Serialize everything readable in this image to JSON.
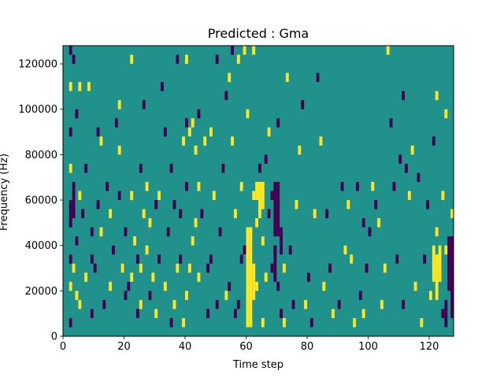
{
  "chart_data": {
    "type": "heatmap",
    "title": "Predicted : Gma",
    "xlabel": "Time step",
    "ylabel": "Frequency (Hz)",
    "xlim": [
      0,
      128
    ],
    "ylim": [
      0,
      128000
    ],
    "x_ticks": [
      0,
      20,
      40,
      60,
      80,
      100,
      120
    ],
    "y_ticks": [
      0,
      20000,
      40000,
      60000,
      80000,
      100000,
      120000
    ],
    "x_tick_labels": [
      "0",
      "20",
      "40",
      "60",
      "80",
      "100",
      "120"
    ],
    "y_tick_labels": [
      "0",
      "20000",
      "40000",
      "60000",
      "80000",
      "100000",
      "120000"
    ],
    "grid": false,
    "legend": "none",
    "colormap": "viridis",
    "levels": {
      "low": {
        "value": -1,
        "color": "#440154"
      },
      "mid": {
        "value": 0,
        "color": "#21918c"
      },
      "high": {
        "value": 1,
        "color": "#fde725"
      }
    },
    "cell_height_hz": 4000,
    "cells": [
      {
        "x": 2,
        "y": 4000,
        "v": -1
      },
      {
        "x": 2,
        "y": 32000,
        "v": -1
      },
      {
        "x": 2,
        "y": 48000,
        "v": -1
      },
      {
        "x": 2,
        "y": 56000,
        "v": -1
      },
      {
        "x": 2,
        "y": 88000,
        "v": -1
      },
      {
        "x": 2,
        "y": 124000,
        "v": -1
      },
      {
        "x": 2,
        "y": 20000,
        "v": 1
      },
      {
        "x": 2,
        "y": 72000,
        "v": 1
      },
      {
        "x": 2,
        "y": 108000,
        "v": 1
      },
      {
        "x": 3,
        "y": 64000,
        "v": -1
      },
      {
        "x": 3,
        "y": 120000,
        "v": -1
      },
      {
        "x": 3,
        "y": 28000,
        "v": 1
      },
      {
        "x": 4,
        "y": 40000,
        "v": -1
      },
      {
        "x": 4,
        "y": 96000,
        "v": -1
      },
      {
        "x": 4,
        "y": 16000,
        "v": 1
      },
      {
        "x": 5,
        "y": 12000,
        "v": 1
      },
      {
        "x": 5,
        "y": 60000,
        "v": 1
      },
      {
        "x": 5,
        "y": 108000,
        "v": 1
      },
      {
        "x": 6,
        "y": 52000,
        "v": -1
      },
      {
        "x": 7,
        "y": 72000,
        "v": -1
      },
      {
        "x": 7,
        "y": 24000,
        "v": 1
      },
      {
        "x": 8,
        "y": 108000,
        "v": 1
      },
      {
        "x": 9,
        "y": 44000,
        "v": -1
      },
      {
        "x": 9,
        "y": 8000,
        "v": -1
      },
      {
        "x": 9,
        "y": 32000,
        "v": -1
      },
      {
        "x": 10,
        "y": 28000,
        "v": -1
      },
      {
        "x": 11,
        "y": 56000,
        "v": -1
      },
      {
        "x": 11,
        "y": 88000,
        "v": -1
      },
      {
        "x": 12,
        "y": 84000,
        "v": 1
      },
      {
        "x": 12,
        "y": 44000,
        "v": 1
      },
      {
        "x": 13,
        "y": 12000,
        "v": -1
      },
      {
        "x": 14,
        "y": 64000,
        "v": -1
      },
      {
        "x": 15,
        "y": 52000,
        "v": 1
      },
      {
        "x": 15,
        "y": 20000,
        "v": 1
      },
      {
        "x": 16,
        "y": 36000,
        "v": -1
      },
      {
        "x": 17,
        "y": 92000,
        "v": -1
      },
      {
        "x": 18,
        "y": 60000,
        "v": -1
      },
      {
        "x": 18,
        "y": 80000,
        "v": 1
      },
      {
        "x": 18,
        "y": 100000,
        "v": 1
      },
      {
        "x": 19,
        "y": 28000,
        "v": 1
      },
      {
        "x": 20,
        "y": 16000,
        "v": -1
      },
      {
        "x": 20,
        "y": 44000,
        "v": -1
      },
      {
        "x": 21,
        "y": 20000,
        "v": -1
      },
      {
        "x": 22,
        "y": 24000,
        "v": 1
      },
      {
        "x": 22,
        "y": 60000,
        "v": 1
      },
      {
        "x": 22,
        "y": 120000,
        "v": 1
      },
      {
        "x": 23,
        "y": 40000,
        "v": 1
      },
      {
        "x": 24,
        "y": 32000,
        "v": -1
      },
      {
        "x": 24,
        "y": 8000,
        "v": -1
      },
      {
        "x": 25,
        "y": 72000,
        "v": -1
      },
      {
        "x": 25,
        "y": 12000,
        "v": 1
      },
      {
        "x": 25,
        "y": 28000,
        "v": 1
      },
      {
        "x": 26,
        "y": 52000,
        "v": 1
      },
      {
        "x": 26,
        "y": 100000,
        "v": -1
      },
      {
        "x": 27,
        "y": 64000,
        "v": 1
      },
      {
        "x": 27,
        "y": 36000,
        "v": 1
      },
      {
        "x": 28,
        "y": 48000,
        "v": 1
      },
      {
        "x": 28,
        "y": 16000,
        "v": -1
      },
      {
        "x": 29,
        "y": 24000,
        "v": 1
      },
      {
        "x": 30,
        "y": 8000,
        "v": 1
      },
      {
        "x": 30,
        "y": 56000,
        "v": -1
      },
      {
        "x": 31,
        "y": 32000,
        "v": -1
      },
      {
        "x": 31,
        "y": 60000,
        "v": 1
      },
      {
        "x": 32,
        "y": 108000,
        "v": -1
      },
      {
        "x": 33,
        "y": 20000,
        "v": 1
      },
      {
        "x": 33,
        "y": 88000,
        "v": -1
      },
      {
        "x": 34,
        "y": 44000,
        "v": -1
      },
      {
        "x": 35,
        "y": 4000,
        "v": -1
      },
      {
        "x": 35,
        "y": 72000,
        "v": -1
      },
      {
        "x": 36,
        "y": 12000,
        "v": 1
      },
      {
        "x": 36,
        "y": 56000,
        "v": -1
      },
      {
        "x": 37,
        "y": 28000,
        "v": 1
      },
      {
        "x": 37,
        "y": 120000,
        "v": -1
      },
      {
        "x": 38,
        "y": 52000,
        "v": -1
      },
      {
        "x": 38,
        "y": 32000,
        "v": -1
      },
      {
        "x": 39,
        "y": 84000,
        "v": 1
      },
      {
        "x": 39,
        "y": 4000,
        "v": 1
      },
      {
        "x": 40,
        "y": 64000,
        "v": -1
      },
      {
        "x": 40,
        "y": 92000,
        "v": -1
      },
      {
        "x": 40,
        "y": 16000,
        "v": 1
      },
      {
        "x": 40,
        "y": 120000,
        "v": 1
      },
      {
        "x": 41,
        "y": 88000,
        "v": 1
      },
      {
        "x": 41,
        "y": 28000,
        "v": 1
      },
      {
        "x": 42,
        "y": 92000,
        "v": 1
      },
      {
        "x": 42,
        "y": 40000,
        "v": 1
      },
      {
        "x": 43,
        "y": 80000,
        "v": 1
      },
      {
        "x": 43,
        "y": 48000,
        "v": 1
      },
      {
        "x": 44,
        "y": 24000,
        "v": 1
      },
      {
        "x": 44,
        "y": 64000,
        "v": 1
      },
      {
        "x": 44,
        "y": 96000,
        "v": -1
      },
      {
        "x": 45,
        "y": 52000,
        "v": -1
      },
      {
        "x": 46,
        "y": 84000,
        "v": 1
      },
      {
        "x": 47,
        "y": 28000,
        "v": -1
      },
      {
        "x": 47,
        "y": 8000,
        "v": -1
      },
      {
        "x": 48,
        "y": 88000,
        "v": 1
      },
      {
        "x": 48,
        "y": 32000,
        "v": -1
      },
      {
        "x": 49,
        "y": 60000,
        "v": 1
      },
      {
        "x": 50,
        "y": 12000,
        "v": -1
      },
      {
        "x": 50,
        "y": 120000,
        "v": -1
      },
      {
        "x": 51,
        "y": 44000,
        "v": -1
      },
      {
        "x": 52,
        "y": 72000,
        "v": -1
      },
      {
        "x": 53,
        "y": 16000,
        "v": 1
      },
      {
        "x": 53,
        "y": 104000,
        "v": -1
      },
      {
        "x": 54,
        "y": 20000,
        "v": -1
      },
      {
        "x": 54,
        "y": 112000,
        "v": 1
      },
      {
        "x": 55,
        "y": 84000,
        "v": 1
      },
      {
        "x": 55,
        "y": 124000,
        "v": -1
      },
      {
        "x": 56,
        "y": 52000,
        "v": 1
      },
      {
        "x": 56,
        "y": 8000,
        "v": -1
      },
      {
        "x": 57,
        "y": 12000,
        "v": -1
      },
      {
        "x": 57,
        "y": 120000,
        "v": 1
      },
      {
        "x": 58,
        "y": 32000,
        "v": -1
      },
      {
        "x": 58,
        "y": 64000,
        "v": 1
      },
      {
        "x": 59,
        "y": 36000,
        "v": -1
      },
      {
        "x": 59,
        "y": 124000,
        "v": 1
      },
      {
        "x": 60,
        "y": 96000,
        "v": 1
      },
      {
        "x": 60,
        "y": 28000,
        "v": 1
      },
      {
        "x": 61,
        "y": 44000,
        "v": 1
      },
      {
        "x": 61,
        "y": 4000,
        "v": 1
      },
      {
        "x": 62,
        "y": 60000,
        "v": 1
      },
      {
        "x": 62,
        "y": 124000,
        "v": 1
      },
      {
        "x": 63,
        "y": 48000,
        "v": 1
      },
      {
        "x": 63,
        "y": 20000,
        "v": 1
      },
      {
        "x": 64,
        "y": 72000,
        "v": -1
      },
      {
        "x": 64,
        "y": 56000,
        "v": 1
      },
      {
        "x": 65,
        "y": 40000,
        "v": 1
      },
      {
        "x": 65,
        "y": 4000,
        "v": 1
      },
      {
        "x": 66,
        "y": 76000,
        "v": -1
      },
      {
        "x": 66,
        "y": 24000,
        "v": 1
      },
      {
        "x": 67,
        "y": 52000,
        "v": -1
      },
      {
        "x": 67,
        "y": 88000,
        "v": 1
      },
      {
        "x": 68,
        "y": 60000,
        "v": -1
      },
      {
        "x": 68,
        "y": 28000,
        "v": -1
      },
      {
        "x": 69,
        "y": 64000,
        "v": -1
      },
      {
        "x": 69,
        "y": 48000,
        "v": -1
      },
      {
        "x": 69,
        "y": 36000,
        "v": -1
      },
      {
        "x": 70,
        "y": 56000,
        "v": -1
      },
      {
        "x": 70,
        "y": 20000,
        "v": -1
      },
      {
        "x": 70,
        "y": 92000,
        "v": -1
      },
      {
        "x": 71,
        "y": 8000,
        "v": -1
      },
      {
        "x": 72,
        "y": 4000,
        "v": 1
      },
      {
        "x": 72,
        "y": 28000,
        "v": 1
      },
      {
        "x": 73,
        "y": 112000,
        "v": 1
      },
      {
        "x": 74,
        "y": 36000,
        "v": -1
      },
      {
        "x": 75,
        "y": 12000,
        "v": -1
      },
      {
        "x": 76,
        "y": 56000,
        "v": 1
      },
      {
        "x": 77,
        "y": 80000,
        "v": 1
      },
      {
        "x": 78,
        "y": 100000,
        "v": -1
      },
      {
        "x": 79,
        "y": 12000,
        "v": 1
      },
      {
        "x": 80,
        "y": 24000,
        "v": -1
      },
      {
        "x": 81,
        "y": 4000,
        "v": -1
      },
      {
        "x": 82,
        "y": 52000,
        "v": 1
      },
      {
        "x": 83,
        "y": 112000,
        "v": -1
      },
      {
        "x": 84,
        "y": 84000,
        "v": 1
      },
      {
        "x": 85,
        "y": 20000,
        "v": 1
      },
      {
        "x": 86,
        "y": 52000,
        "v": -1
      },
      {
        "x": 87,
        "y": 28000,
        "v": -1
      },
      {
        "x": 88,
        "y": 8000,
        "v": 1
      },
      {
        "x": 90,
        "y": 12000,
        "v": -1
      },
      {
        "x": 91,
        "y": 64000,
        "v": -1
      },
      {
        "x": 92,
        "y": 36000,
        "v": 1
      },
      {
        "x": 93,
        "y": 56000,
        "v": 1
      },
      {
        "x": 94,
        "y": 32000,
        "v": 1
      },
      {
        "x": 95,
        "y": 4000,
        "v": 1
      },
      {
        "x": 96,
        "y": 64000,
        "v": -1
      },
      {
        "x": 97,
        "y": 16000,
        "v": -1
      },
      {
        "x": 98,
        "y": 48000,
        "v": -1
      },
      {
        "x": 98,
        "y": 8000,
        "v": 1
      },
      {
        "x": 99,
        "y": 28000,
        "v": -1
      },
      {
        "x": 100,
        "y": 44000,
        "v": -1
      },
      {
        "x": 101,
        "y": 64000,
        "v": 1
      },
      {
        "x": 102,
        "y": 56000,
        "v": -1
      },
      {
        "x": 103,
        "y": 48000,
        "v": 1
      },
      {
        "x": 104,
        "y": 12000,
        "v": 1
      },
      {
        "x": 105,
        "y": 28000,
        "v": 1
      },
      {
        "x": 106,
        "y": 124000,
        "v": 1
      },
      {
        "x": 107,
        "y": 92000,
        "v": -1
      },
      {
        "x": 108,
        "y": 64000,
        "v": -1
      },
      {
        "x": 109,
        "y": 32000,
        "v": -1
      },
      {
        "x": 110,
        "y": 76000,
        "v": -1
      },
      {
        "x": 111,
        "y": 12000,
        "v": -1
      },
      {
        "x": 111,
        "y": 104000,
        "v": -1
      },
      {
        "x": 112,
        "y": 72000,
        "v": -1
      },
      {
        "x": 113,
        "y": 60000,
        "v": 1
      },
      {
        "x": 114,
        "y": 80000,
        "v": 1
      },
      {
        "x": 115,
        "y": 20000,
        "v": 1
      },
      {
        "x": 116,
        "y": 68000,
        "v": -1
      },
      {
        "x": 117,
        "y": 4000,
        "v": 1
      },
      {
        "x": 118,
        "y": 32000,
        "v": -1
      },
      {
        "x": 119,
        "y": 56000,
        "v": -1
      },
      {
        "x": 120,
        "y": 16000,
        "v": 1
      },
      {
        "x": 121,
        "y": 84000,
        "v": -1
      },
      {
        "x": 122,
        "y": 44000,
        "v": 1
      },
      {
        "x": 122,
        "y": 104000,
        "v": 1
      },
      {
        "x": 123,
        "y": 24000,
        "v": 1
      },
      {
        "x": 124,
        "y": 60000,
        "v": 1
      },
      {
        "x": 124,
        "y": 8000,
        "v": -1
      },
      {
        "x": 125,
        "y": 36000,
        "v": 1
      },
      {
        "x": 125,
        "y": 96000,
        "v": 1
      },
      {
        "x": 126,
        "y": 20000,
        "v": -1
      },
      {
        "x": 127,
        "y": 52000,
        "v": 1
      }
    ],
    "runs": [
      {
        "x": 60,
        "y0": 4000,
        "y1": 48000,
        "v": 1
      },
      {
        "x": 61,
        "y0": 4000,
        "y1": 48000,
        "v": 1
      },
      {
        "x": 62,
        "y0": 16000,
        "y1": 32000,
        "v": 1
      },
      {
        "x": 63,
        "y0": 60000,
        "y1": 68000,
        "v": 1
      },
      {
        "x": 64,
        "y0": 52000,
        "y1": 68000,
        "v": 1
      },
      {
        "x": 65,
        "y0": 56000,
        "y1": 68000,
        "v": 1
      },
      {
        "x": 69,
        "y0": 44000,
        "y1": 68000,
        "v": -1
      },
      {
        "x": 70,
        "y0": 44000,
        "y1": 68000,
        "v": -1
      },
      {
        "x": 71,
        "y0": 36000,
        "y1": 48000,
        "v": -1
      },
      {
        "x": 69,
        "y0": 24000,
        "y1": 40000,
        "v": -1
      },
      {
        "x": 121,
        "y0": 24000,
        "y1": 40000,
        "v": 1
      },
      {
        "x": 122,
        "y0": 16000,
        "y1": 36000,
        "v": 1
      },
      {
        "x": 123,
        "y0": 28000,
        "y1": 40000,
        "v": 1
      },
      {
        "x": 126,
        "y0": 24000,
        "y1": 44000,
        "v": -1
      },
      {
        "x": 127,
        "y0": 8000,
        "y1": 44000,
        "v": -1
      },
      {
        "x": 125,
        "y0": 4000,
        "y1": 16000,
        "v": -1
      },
      {
        "x": 2,
        "y0": 48000,
        "y1": 56000,
        "v": -1
      },
      {
        "x": 3,
        "y0": 52000,
        "y1": 64000,
        "v": -1
      }
    ]
  }
}
